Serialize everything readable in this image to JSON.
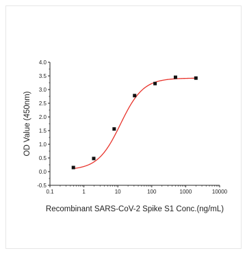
{
  "chart_data": {
    "type": "scatter",
    "title": "",
    "xlabel": "Recombinant SARS-CoV-2 Spike S1 Conc.(ng/mL)",
    "ylabel": "OD Value (450nm)",
    "x_scale": "log",
    "xlim": [
      0.1,
      10000
    ],
    "ylim": [
      -0.5,
      4.0
    ],
    "x_ticks": [
      "0.1",
      "1",
      "10",
      "100",
      "1000",
      "10000"
    ],
    "y_ticks": [
      "-0.5",
      "0.0",
      "0.5",
      "1.0",
      "1.5",
      "2.0",
      "2.5",
      "3.0",
      "3.5",
      "4.0"
    ],
    "grid": false,
    "legend": "none",
    "series": [
      {
        "x": [
          0.49,
          1.95,
          7.8,
          31.25,
          125,
          500,
          2000
        ],
        "values": [
          0.15,
          0.48,
          1.56,
          2.78,
          3.22,
          3.45,
          3.42
        ],
        "marker": "square",
        "color": "#111111"
      }
    ],
    "fit_curve": {
      "type": "4PL",
      "bottom": 0.06,
      "top": 3.42,
      "ec50": 12,
      "hill": 1.3,
      "color": "#e8322a"
    }
  }
}
